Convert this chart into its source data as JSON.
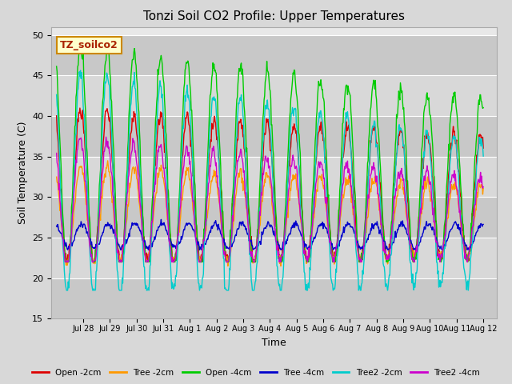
{
  "title": "Tonzi Soil CO2 Profile: Upper Temperatures",
  "xlabel": "Time",
  "ylabel": "Soil Temperature (C)",
  "ylim": [
    15,
    51
  ],
  "yticks": [
    15,
    20,
    25,
    30,
    35,
    40,
    45,
    50
  ],
  "bg_color": "#d8d8d8",
  "plot_bg_color": "#e8e8e8",
  "grid_color": "#ffffff",
  "legend_label": "TZ_soilco2",
  "legend_bg": "#ffffcc",
  "legend_edge": "#cc8800",
  "series_colors": {
    "Open -2cm": "#dd0000",
    "Tree -2cm": "#ff9900",
    "Open -4cm": "#00cc00",
    "Tree -4cm": "#0000cc",
    "Tree2 -2cm": "#00cccc",
    "Tree2 -4cm": "#cc00cc"
  },
  "x_tick_labels": [
    "Jul 28",
    "Jul 29",
    "Jul 30",
    "Jul 31",
    "Aug 1",
    "Aug 2",
    "Aug 3",
    "Aug 4",
    "Aug 5",
    "Aug 6",
    "Aug 7",
    "Aug 8",
    "Aug 9",
    "Aug 10",
    "Aug 11",
    "Aug 12"
  ],
  "x_tick_positions": [
    1,
    2,
    3,
    4,
    5,
    6,
    7,
    8,
    9,
    10,
    11,
    12,
    13,
    14,
    15,
    16
  ]
}
